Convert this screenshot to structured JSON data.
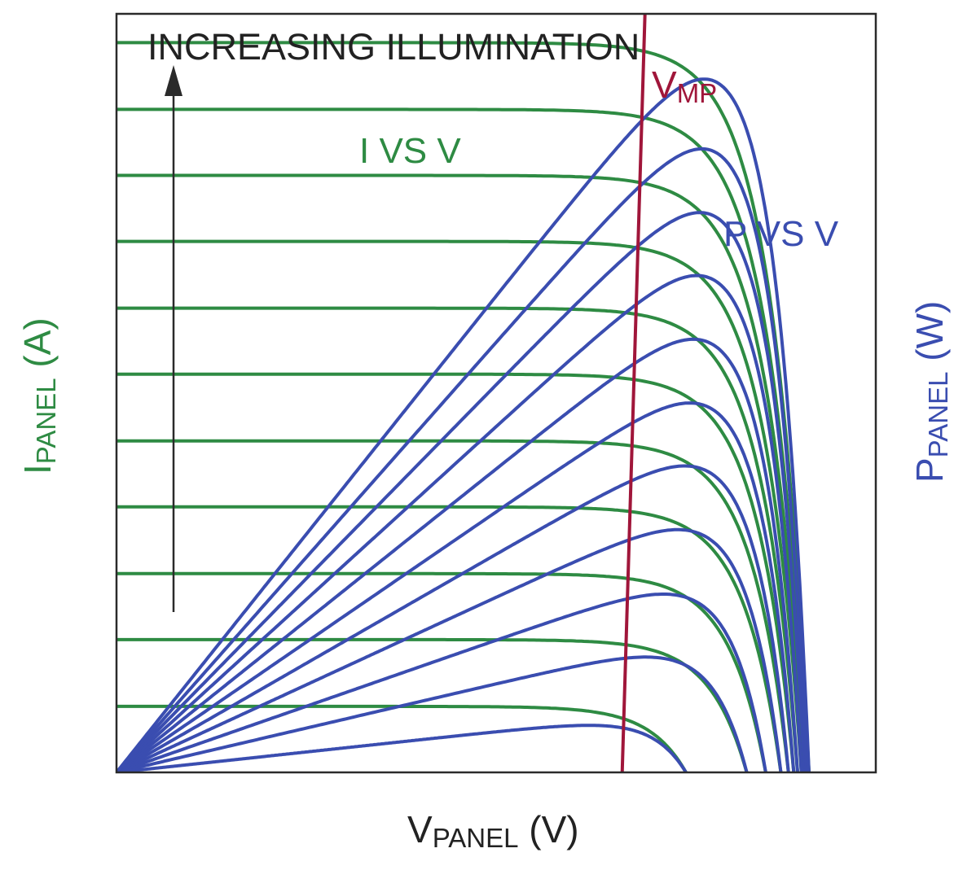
{
  "colors": {
    "current": "#2e8b43",
    "power": "#3a4db0",
    "vmp": "#a0163a",
    "frame": "#2a2a2a",
    "text": "#222222"
  },
  "labels": {
    "arrow": "INCREASING ILLUMINATION",
    "i_vs_v": "I VS V",
    "p_vs_v": "P VS V",
    "vmp_main": "V",
    "vmp_sub": "MP",
    "x_main": "V",
    "x_sub": "PANEL",
    "x_unit": " (V)",
    "y_left_main": "I",
    "y_left_sub": "PANEL",
    "y_left_unit": " (A)",
    "y_right_main": "P",
    "y_right_sub": "PANEL",
    "y_right_unit": " (W)"
  },
  "chart_data": {
    "type": "line",
    "title": "",
    "xlabel": "VPANEL (V)",
    "ylabel_left": "IPANEL (A)",
    "ylabel_right": "PPANEL (W)",
    "axis_ticks": "none",
    "grid": false,
    "xlim": [
      0,
      1
    ],
    "ylim": [
      0,
      1
    ],
    "annotations": [
      "INCREASING ILLUMINATION",
      "I VS V",
      "P VS V",
      "VMP"
    ],
    "current_curves": {
      "name": "I VS V",
      "isc": [
        0.087,
        0.175,
        0.262,
        0.35,
        0.437,
        0.525,
        0.612,
        0.7,
        0.787,
        0.874,
        0.962
      ],
      "voc": [
        0.75,
        0.83,
        0.855,
        0.875,
        0.885,
        0.892,
        0.897,
        0.902,
        0.906,
        0.909,
        0.912
      ],
      "shape_vt": 0.049
    },
    "power_curves": {
      "name": "P VS V",
      "pmax": [
        0.062,
        0.152,
        0.235,
        0.32,
        0.404,
        0.487,
        0.571,
        0.655,
        0.738,
        0.822,
        0.914
      ],
      "vmp": [
        0.643,
        0.639,
        0.65,
        0.658,
        0.666,
        0.672,
        0.676,
        0.68,
        0.683,
        0.686,
        0.691
      ]
    },
    "vmp_line": {
      "name": "VMP",
      "points": [
        [
          0.666,
          0
        ],
        [
          0.696,
          1
        ]
      ]
    }
  }
}
